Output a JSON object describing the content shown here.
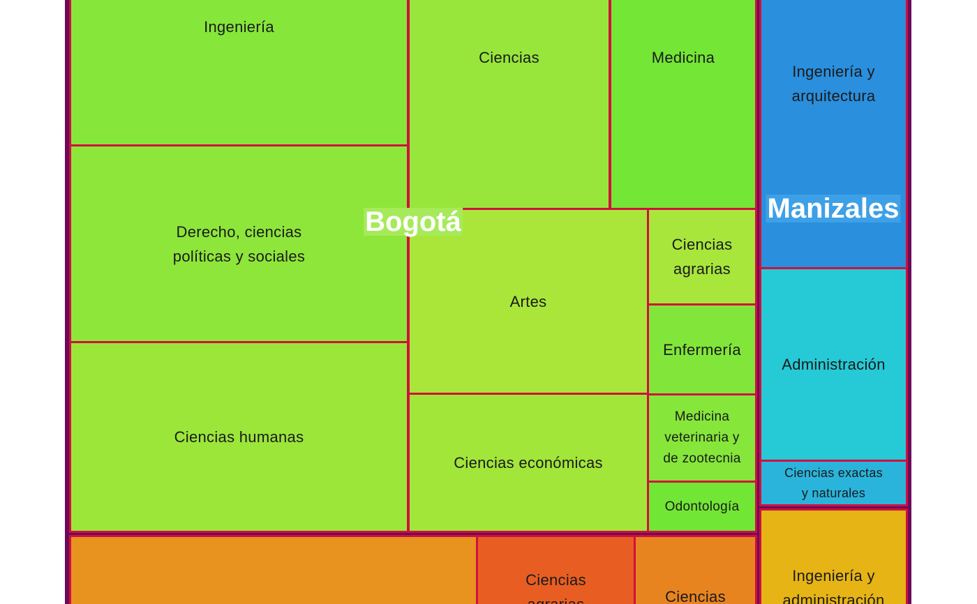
{
  "chart_data": {
    "type": "treemap",
    "groups": [
      {
        "name": "Bogotá",
        "color": "#8ee63a",
        "label_bg": "#a6ea5a",
        "children": [
          {
            "name": "Ingeniería",
            "color": "#86e63a"
          },
          {
            "name": "Derecho, ciencias\npolíticas y sociales",
            "color": "#8ee63a"
          },
          {
            "name": "Ciencias humanas",
            "color": "#9ce63a"
          },
          {
            "name": "Ciencias",
            "color": "#98e63c"
          },
          {
            "name": "Medicina",
            "color": "#74e636"
          },
          {
            "name": "Artes",
            "color": "#aae63a"
          },
          {
            "name": "Ciencias\nagrarias",
            "color": "#a8e63c"
          },
          {
            "name": "Enfermería",
            "color": "#82e63a"
          },
          {
            "name": "Ciencias económicas",
            "color": "#a2e63a"
          },
          {
            "name": "Medicina\nveterinaria y\nde zootecnia",
            "color": "#86e63a"
          },
          {
            "name": "Odontología",
            "color": "#72e634"
          }
        ]
      },
      {
        "name": "Manizales",
        "color": "#2a8fdd",
        "label_bg": "#3ea0e6",
        "children": [
          {
            "name": "Ingeniería y\narquitectura",
            "color": "#2a8fdd"
          },
          {
            "name": "Administración",
            "color": "#26cad6"
          },
          {
            "name": "Ciencias exactas\ny naturales",
            "color": "#2ab4dc"
          }
        ]
      },
      {
        "name": "",
        "color": "#e8921f",
        "children": [
          {
            "name": "",
            "color": "#e8921f"
          },
          {
            "name": "Ciencias\nagrarias",
            "color": "#e85e22"
          },
          {
            "name": "Ciencias",
            "color": "#e88420"
          }
        ]
      },
      {
        "name": "",
        "color": "#e6b414",
        "children": [
          {
            "name": "Ingeniería y\nadministración",
            "color": "#e6b414"
          }
        ]
      }
    ]
  }
}
